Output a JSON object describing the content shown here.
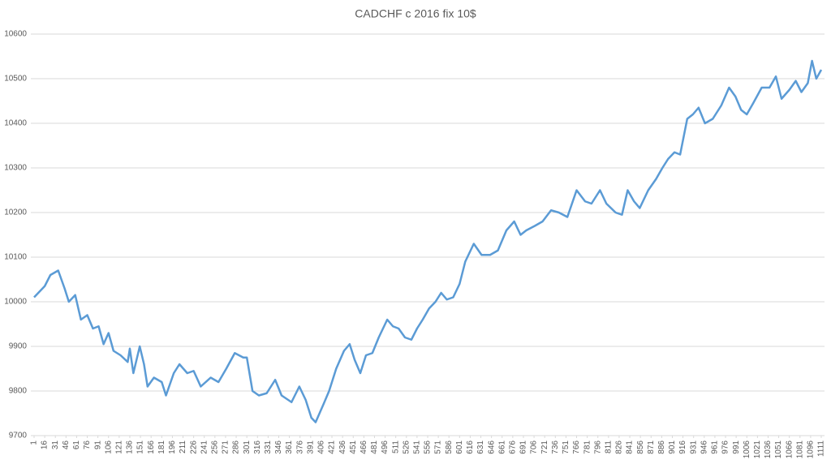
{
  "chart_data": {
    "type": "line",
    "title": "CADCHF с 2016 fix 10$",
    "x": [
      1,
      16,
      24,
      35,
      44,
      50,
      59,
      67,
      76,
      84,
      92,
      99,
      106,
      113,
      123,
      133,
      136,
      141,
      150,
      156,
      161,
      170,
      181,
      187,
      198,
      206,
      217,
      226,
      236,
      250,
      261,
      272,
      284,
      296,
      301,
      309,
      318,
      329,
      341,
      350,
      364,
      375,
      384,
      392,
      398,
      409,
      417,
      427,
      438,
      446,
      453,
      461,
      469,
      478,
      487,
      499,
      507,
      515,
      524,
      533,
      541,
      549,
      558,
      567,
      575,
      583,
      592,
      601,
      609,
      621,
      632,
      644,
      655,
      667,
      678,
      687,
      695,
      707,
      718,
      730,
      741,
      753,
      766,
      778,
      787,
      799,
      808,
      821,
      830,
      838,
      847,
      855,
      867,
      878,
      887,
      895,
      904,
      912,
      922,
      930,
      938,
      947,
      958,
      970,
      981,
      990,
      998,
      1006,
      1015,
      1027,
      1038,
      1047,
      1055,
      1066,
      1075,
      1083,
      1092,
      1098,
      1104,
      1111
    ],
    "series": [
      {
        "name": "CADCHF",
        "color": "#5b9bd5",
        "values": [
          10010,
          10035,
          10060,
          10070,
          10030,
          10000,
          10015,
          9960,
          9970,
          9940,
          9945,
          9905,
          9930,
          9890,
          9880,
          9865,
          9895,
          9840,
          9900,
          9860,
          9810,
          9830,
          9820,
          9790,
          9840,
          9860,
          9840,
          9845,
          9810,
          9830,
          9820,
          9850,
          9885,
          9875,
          9875,
          9800,
          9790,
          9795,
          9825,
          9790,
          9775,
          9810,
          9780,
          9740,
          9730,
          9770,
          9800,
          9850,
          9890,
          9905,
          9870,
          9840,
          9880,
          9885,
          9920,
          9960,
          9945,
          9940,
          9920,
          9915,
          9940,
          9960,
          9985,
          10000,
          10020,
          10005,
          10010,
          10040,
          10090,
          10130,
          10105,
          10105,
          10115,
          10160,
          10180,
          10150,
          10160,
          10170,
          10180,
          10205,
          10200,
          10190,
          10250,
          10225,
          10220,
          10250,
          10220,
          10200,
          10195,
          10250,
          10225,
          10210,
          10250,
          10275,
          10300,
          10320,
          10335,
          10330,
          10410,
          10420,
          10435,
          10400,
          10410,
          10440,
          10480,
          10460,
          10430,
          10420,
          10445,
          10480,
          10480,
          10505,
          10455,
          10475,
          10495,
          10470,
          10490,
          10540,
          10500,
          10520
        ]
      }
    ],
    "xlim": [
      1,
      1111
    ],
    "xticks": [
      1,
      16,
      31,
      46,
      61,
      76,
      91,
      106,
      121,
      136,
      151,
      166,
      181,
      196,
      211,
      226,
      241,
      256,
      271,
      286,
      301,
      316,
      331,
      346,
      361,
      376,
      391,
      406,
      421,
      436,
      451,
      466,
      481,
      496,
      511,
      526,
      541,
      556,
      571,
      586,
      601,
      616,
      631,
      646,
      661,
      676,
      691,
      706,
      721,
      736,
      751,
      766,
      781,
      796,
      811,
      826,
      841,
      856,
      871,
      886,
      901,
      916,
      931,
      946,
      961,
      976,
      991,
      1006,
      1021,
      1036,
      1051,
      1066,
      1081,
      1096,
      1111
    ],
    "ylim": [
      9700,
      10600
    ],
    "yticks": [
      9700,
      9800,
      9900,
      10000,
      10100,
      10200,
      10300,
      10400,
      10500,
      10600
    ],
    "grid": true
  }
}
